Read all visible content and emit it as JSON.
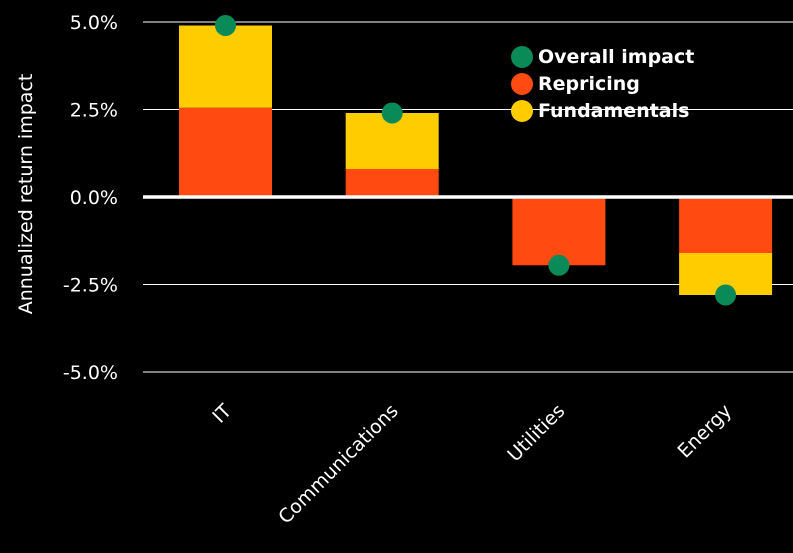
{
  "chart_data": {
    "type": "bar",
    "stacked": true,
    "title": "",
    "xlabel": "",
    "ylabel": "Annualized return impact",
    "ylim": [
      -5.5,
      5.2
    ],
    "yticks": [
      5.0,
      2.5,
      0.0,
      -2.5,
      -5.0
    ],
    "ytick_labels": [
      "5.0%",
      "2.5%",
      "0.0%",
      "-2.5%",
      "-5.0%"
    ],
    "categories": [
      "IT",
      "Communications",
      "Utilities",
      "Energy"
    ],
    "series": [
      {
        "name": "Repricing",
        "kind": "bar",
        "color": "#FF4A12",
        "values": [
          2.55,
          0.8,
          -1.95,
          -1.6
        ]
      },
      {
        "name": "Fundamentals",
        "kind": "bar",
        "color": "#FFCC00",
        "values": [
          2.35,
          1.6,
          0.0,
          -1.2
        ]
      },
      {
        "name": "Overall impact",
        "kind": "dot",
        "color": "#0A8A57",
        "values": [
          4.9,
          2.4,
          -1.95,
          -2.8
        ]
      }
    ],
    "legend": {
      "position": "top-right",
      "order": [
        "Overall impact",
        "Repricing",
        "Fundamentals"
      ]
    },
    "grid": true,
    "colors": {
      "background": "#000000",
      "text": "#FFFFFF",
      "gridline": "#FFFFFF",
      "zero_line": "#FFFFFF"
    }
  }
}
